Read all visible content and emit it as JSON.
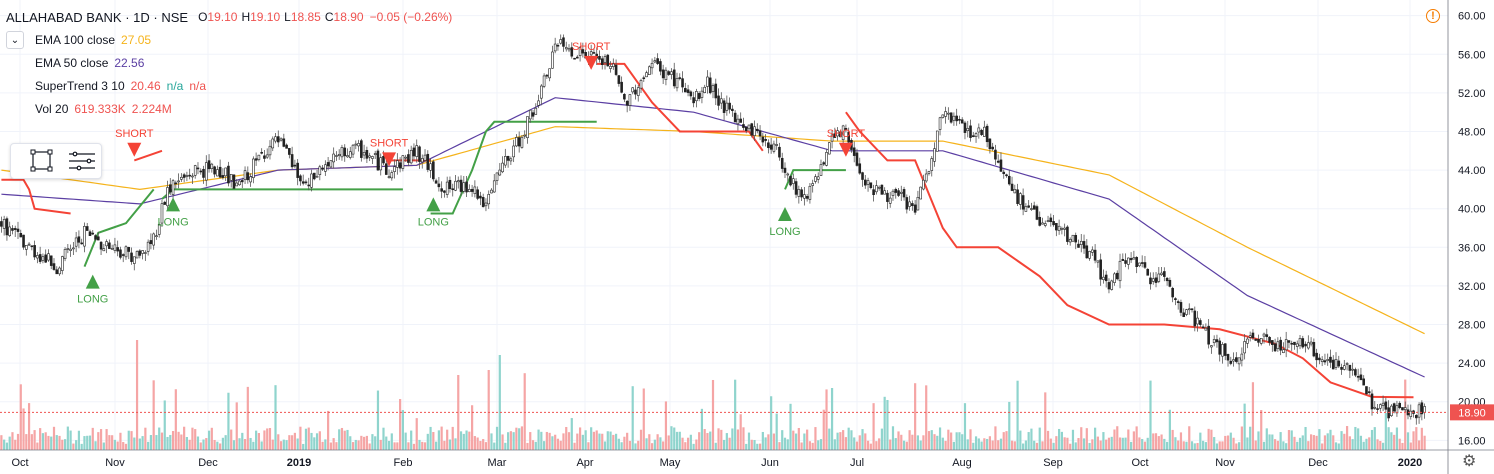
{
  "header": {
    "title": "ALLAHABAD BANK · 1D · NSE",
    "ohlc": [
      {
        "k": "O",
        "v": "19.10"
      },
      {
        "k": "H",
        "v": "19.10"
      },
      {
        "k": "L",
        "v": "18.85"
      },
      {
        "k": "C",
        "v": "18.90"
      }
    ],
    "change": "−0.05 (−0.26%)"
  },
  "indicators": [
    {
      "label": "EMA 100 close",
      "values": [
        {
          "v": "27.05",
          "color": "#f5b31b"
        }
      ]
    },
    {
      "label": "EMA 50 close",
      "values": [
        {
          "v": "22.56",
          "color": "#5b3fa3"
        }
      ]
    },
    {
      "label": "SuperTrend 3 10",
      "values": [
        {
          "v": "20.46",
          "color": "#ef5350"
        },
        {
          "v": "n/a",
          "color": "#26a69a"
        },
        {
          "v": "n/a",
          "color": "#ef5350"
        }
      ]
    },
    {
      "label": "Vol 20",
      "values": [
        {
          "v": "619.333K",
          "color": "#ef5350"
        },
        {
          "v": "2.224M",
          "color": "#ef5350"
        }
      ]
    }
  ],
  "price_tag": "18.90",
  "colors": {
    "up": "#26a69a",
    "down": "#ef5350",
    "st_up": "#43a047",
    "st_down": "#f44336",
    "ema100": "#f5b31b",
    "ema50": "#5b3fa3"
  },
  "icons": [
    "collapse-icon",
    "rectangle-tool-icon",
    "lines-tool-icon",
    "alert-icon",
    "settings-gear-icon"
  ],
  "chart_data": {
    "type": "candlestick",
    "y_ticks": [
      "60.00",
      "56.00",
      "52.00",
      "48.00",
      "44.00",
      "40.00",
      "36.00",
      "32.00",
      "28.00",
      "24.00",
      "20.00",
      "16.00"
    ],
    "y_range": [
      15,
      61
    ],
    "x_ticks": [
      "Oct",
      "Nov",
      "Dec",
      "2019",
      "Feb",
      "Mar",
      "Apr",
      "May",
      "Jun",
      "Jul",
      "Aug",
      "Sep",
      "Oct",
      "Nov",
      "Dec",
      "2020"
    ],
    "close_path": [
      [
        0,
        38.5
      ],
      [
        10,
        36
      ],
      [
        20,
        34
      ],
      [
        30,
        37.5
      ],
      [
        40,
        36
      ],
      [
        50,
        35
      ],
      [
        55,
        37
      ],
      [
        60,
        42
      ],
      [
        70,
        44
      ],
      [
        80,
        44
      ],
      [
        85,
        42
      ],
      [
        95,
        46
      ],
      [
        100,
        47
      ],
      [
        110,
        42
      ],
      [
        115,
        44
      ],
      [
        125,
        46
      ],
      [
        130,
        46
      ],
      [
        140,
        44
      ],
      [
        150,
        46
      ],
      [
        160,
        42
      ],
      [
        170,
        42.5
      ],
      [
        175,
        40
      ],
      [
        180,
        44
      ],
      [
        185,
        46
      ],
      [
        195,
        52
      ],
      [
        200,
        57
      ],
      [
        210,
        56
      ],
      [
        220,
        55
      ],
      [
        225,
        51
      ],
      [
        235,
        55
      ],
      [
        245,
        53
      ],
      [
        250,
        51
      ],
      [
        255,
        53
      ],
      [
        260,
        51
      ],
      [
        265,
        49
      ],
      [
        270,
        48.5
      ],
      [
        280,
        46
      ],
      [
        285,
        43
      ],
      [
        290,
        41
      ],
      [
        300,
        47
      ],
      [
        305,
        48
      ],
      [
        310,
        44
      ],
      [
        315,
        42
      ],
      [
        325,
        41
      ],
      [
        330,
        40
      ],
      [
        335,
        44
      ],
      [
        340,
        50
      ],
      [
        350,
        48
      ],
      [
        355,
        48
      ],
      [
        365,
        42
      ],
      [
        370,
        40
      ],
      [
        380,
        38
      ],
      [
        390,
        36
      ],
      [
        395,
        35
      ],
      [
        400,
        31
      ],
      [
        405,
        35
      ],
      [
        415,
        33
      ],
      [
        420,
        33
      ],
      [
        425,
        30
      ],
      [
        430,
        29
      ],
      [
        435,
        27
      ],
      [
        440,
        25.5
      ],
      [
        445,
        24
      ],
      [
        450,
        26
      ],
      [
        455,
        27
      ],
      [
        460,
        26
      ],
      [
        470,
        26
      ],
      [
        480,
        24
      ],
      [
        490,
        23
      ],
      [
        495,
        20
      ],
      [
        500,
        19
      ],
      [
        510,
        19
      ],
      [
        514,
        18.9
      ]
    ],
    "ema50_path": [
      [
        0,
        41.5
      ],
      [
        50,
        40.5
      ],
      [
        100,
        44
      ],
      [
        150,
        44.5
      ],
      [
        200,
        51.5
      ],
      [
        250,
        50
      ],
      [
        300,
        46
      ],
      [
        340,
        46
      ],
      [
        400,
        41
      ],
      [
        450,
        31
      ],
      [
        514,
        22.56
      ]
    ],
    "ema100_path": [
      [
        0,
        44
      ],
      [
        50,
        42
      ],
      [
        100,
        44
      ],
      [
        150,
        44.5
      ],
      [
        200,
        48.5
      ],
      [
        250,
        48
      ],
      [
        300,
        47
      ],
      [
        340,
        47
      ],
      [
        400,
        43.5
      ],
      [
        450,
        36
      ],
      [
        514,
        27.05
      ]
    ],
    "supertrend": [
      {
        "dir": "short",
        "pts": [
          [
            0,
            43
          ],
          [
            8,
            43
          ],
          [
            10,
            42
          ],
          [
            12,
            40
          ],
          [
            25,
            39.5
          ]
        ]
      },
      {
        "dir": "long",
        "pts": [
          [
            30,
            34
          ],
          [
            35,
            37.5
          ],
          [
            40,
            38
          ],
          [
            45,
            38.5
          ],
          [
            55,
            42
          ]
        ]
      },
      {
        "dir": "short",
        "pts": [
          [
            48,
            45
          ],
          [
            58,
            46
          ]
        ]
      },
      {
        "dir": "long",
        "pts": [
          [
            58,
            41
          ],
          [
            62,
            42
          ],
          [
            145,
            42
          ]
        ]
      },
      {
        "dir": "short",
        "pts": [
          [
            140,
            45
          ],
          [
            155,
            45
          ]
        ]
      },
      {
        "dir": "long",
        "pts": [
          [
            155,
            39.5
          ],
          [
            163,
            39.5
          ],
          [
            170,
            44
          ],
          [
            175,
            48
          ],
          [
            178,
            49
          ],
          [
            215,
            49
          ]
        ]
      },
      {
        "dir": "short",
        "pts": [
          [
            215,
            55
          ],
          [
            225,
            55
          ],
          [
            235,
            51
          ],
          [
            245,
            48
          ],
          [
            270,
            48
          ],
          [
            275,
            46
          ]
        ]
      },
      {
        "dir": "long",
        "pts": [
          [
            283,
            42
          ],
          [
            286,
            44
          ],
          [
            305,
            44
          ]
        ]
      },
      {
        "dir": "short",
        "pts": [
          [
            305,
            50
          ],
          [
            310,
            48
          ],
          [
            320,
            45
          ],
          [
            330,
            45
          ],
          [
            340,
            38
          ],
          [
            345,
            36
          ],
          [
            360,
            36
          ],
          [
            375,
            33
          ],
          [
            385,
            30
          ],
          [
            400,
            28
          ],
          [
            420,
            28
          ],
          [
            440,
            27.5
          ],
          [
            460,
            26
          ],
          [
            470,
            24.5
          ],
          [
            480,
            22
          ],
          [
            490,
            21
          ],
          [
            495,
            20.5
          ],
          [
            510,
            20.46
          ]
        ]
      }
    ],
    "signals": [
      {
        "text": "SHORT",
        "type": "short",
        "i": 48,
        "y": 46
      },
      {
        "text": "LONG",
        "type": "long",
        "i": 33,
        "y": 34
      },
      {
        "text": "LONG",
        "type": "long",
        "i": 62,
        "y": 42
      },
      {
        "text": "SHORT",
        "type": "short",
        "i": 140,
        "y": 45
      },
      {
        "text": "LONG",
        "type": "long",
        "i": 156,
        "y": 42
      },
      {
        "text": "SHORT",
        "type": "short",
        "i": 213,
        "y": 55
      },
      {
        "text": "LONG",
        "type": "long",
        "i": 283,
        "y": 41
      },
      {
        "text": "SHORT",
        "type": "short",
        "i": 305,
        "y": 46
      }
    ]
  }
}
